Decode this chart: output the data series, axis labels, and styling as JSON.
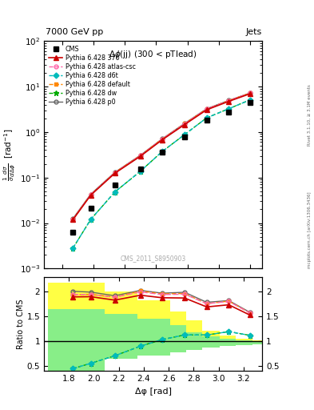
{
  "title_left": "7000 GeV pp",
  "title_right": "Jets",
  "annotation": "Δφ(jj) (300 < pTlead)",
  "watermark": "CMS_2011_S8950903",
  "right_label": "mcplots.cern.ch [arXiv:1306.3436]",
  "right_label2": "Rivet 3.1.10, ≥ 3.1M events",
  "ylabel_ratio": "Ratio to CMS",
  "xlabel": "Δφ [rad]",
  "xlim": [
    1.6,
    3.35
  ],
  "ratio_ylim": [
    0.4,
    2.3
  ],
  "cms_x": [
    1.832,
    1.975,
    2.168,
    2.374,
    2.547,
    2.728,
    2.905,
    3.082,
    3.25
  ],
  "cms_y": [
    0.00623,
    0.0216,
    0.0678,
    0.153,
    0.358,
    0.78,
    1.82,
    2.72,
    4.51
  ],
  "cms_yerr": [
    0.0004,
    0.00095,
    0.0027,
    0.005,
    0.012,
    0.023,
    0.045,
    0.065,
    0.12
  ],
  "p370_x": [
    1.832,
    1.975,
    2.168,
    2.374,
    2.547,
    2.728,
    2.905,
    3.082,
    3.25
  ],
  "p370_y": [
    0.0118,
    0.041,
    0.124,
    0.295,
    0.672,
    1.46,
    3.08,
    4.72,
    6.9
  ],
  "patlas_x": [
    1.832,
    1.975,
    2.168,
    2.374,
    2.547,
    2.728,
    2.905,
    3.082,
    3.25
  ],
  "patlas_y": [
    0.0121,
    0.042,
    0.128,
    0.305,
    0.695,
    1.52,
    3.2,
    4.9,
    7.1
  ],
  "pd6t_x": [
    1.832,
    1.975,
    2.168,
    2.374,
    2.547,
    2.728,
    2.905,
    3.082,
    3.25
  ],
  "pd6t_y": [
    0.0028,
    0.012,
    0.048,
    0.138,
    0.37,
    0.88,
    2.05,
    3.25,
    5.05
  ],
  "pdefault_x": [
    1.832,
    1.975,
    2.168,
    2.374,
    2.547,
    2.728,
    2.905,
    3.082,
    3.25
  ],
  "pdefault_y": [
    0.0121,
    0.042,
    0.128,
    0.308,
    0.7,
    1.53,
    3.2,
    4.92,
    7.1
  ],
  "pdw_x": [
    1.832,
    1.975,
    2.168,
    2.374,
    2.547,
    2.728,
    2.905,
    3.082,
    3.25
  ],
  "pdw_y": [
    0.0028,
    0.012,
    0.048,
    0.138,
    0.37,
    0.88,
    2.05,
    3.25,
    5.05
  ],
  "pp0_x": [
    1.832,
    1.975,
    2.168,
    2.374,
    2.547,
    2.728,
    2.905,
    3.082,
    3.25
  ],
  "pp0_y": [
    0.0125,
    0.043,
    0.13,
    0.31,
    0.705,
    1.55,
    3.25,
    4.95,
    7.15
  ],
  "yellow_band_edges": [
    1.63,
    1.91,
    2.09,
    2.22,
    2.35,
    2.48,
    2.61,
    2.74,
    2.87,
    3.01,
    3.14,
    3.27,
    3.35
  ],
  "yellow_band_lo": [
    0.4,
    0.4,
    0.64,
    0.64,
    0.71,
    0.71,
    0.78,
    0.83,
    0.87,
    0.91,
    0.93,
    0.94,
    0.95
  ],
  "yellow_band_hi": [
    2.18,
    2.18,
    2.0,
    2.0,
    1.82,
    1.82,
    1.6,
    1.42,
    1.22,
    1.12,
    1.05,
    1.02,
    1.01
  ],
  "green_band_edges": [
    1.63,
    1.91,
    2.09,
    2.22,
    2.35,
    2.48,
    2.61,
    2.74,
    2.87,
    3.01,
    3.14,
    3.27,
    3.35
  ],
  "green_band_lo": [
    0.4,
    0.4,
    0.64,
    0.64,
    0.71,
    0.71,
    0.78,
    0.83,
    0.87,
    0.91,
    0.93,
    0.94,
    0.95
  ],
  "green_band_hi": [
    1.65,
    1.65,
    1.55,
    1.55,
    1.45,
    1.45,
    1.32,
    1.18,
    1.1,
    1.05,
    1.02,
    1.01,
    1.0
  ],
  "color_370": "#cc0000",
  "color_atlas": "#ff66aa",
  "color_d6t": "#00bbbb",
  "color_default": "#ff8800",
  "color_dw": "#00aa00",
  "color_p0": "#666666",
  "color_yellow": "#ffff44",
  "color_green": "#88ee88"
}
